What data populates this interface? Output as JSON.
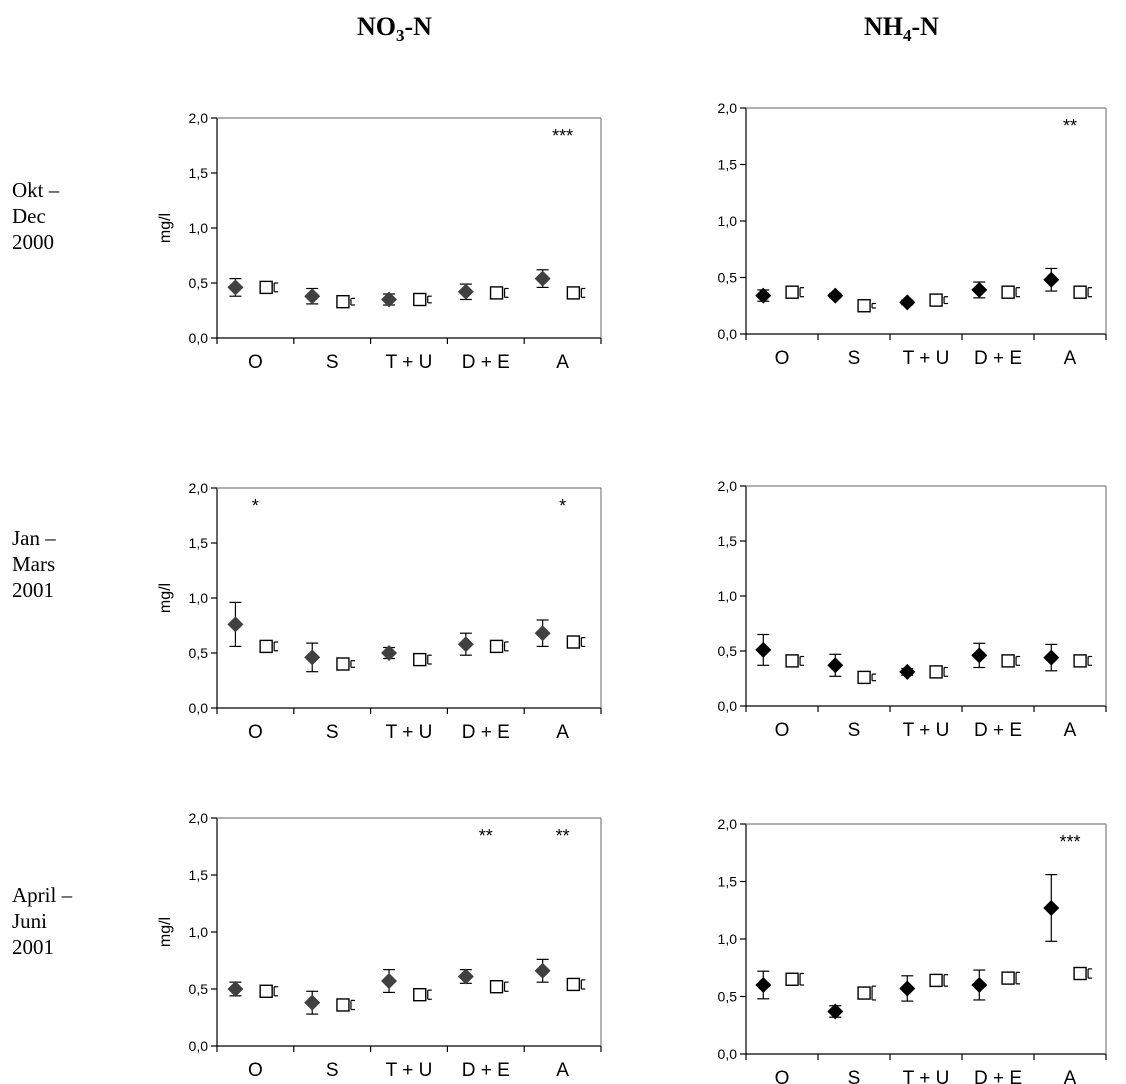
{
  "column_titles": [
    {
      "main": "NO",
      "sub": "3",
      "suffix": "-N"
    },
    {
      "main": "NH",
      "sub": "4",
      "suffix": "-N"
    }
  ],
  "row_labels": [
    [
      "Okt –",
      "Dec",
      "2000"
    ],
    [
      "Jan –",
      "Mars",
      "2001"
    ],
    [
      "April –",
      "Juni",
      "2001"
    ]
  ],
  "chart_data": [
    {
      "type": "scatter",
      "ylabel": "mg/l",
      "ylim": [
        0,
        2
      ],
      "yticks": [
        "0,0",
        "0,5",
        "1,0",
        "1,5",
        "2,0"
      ],
      "categories": [
        "O",
        "S",
        "T + U",
        "D + E",
        "A"
      ],
      "series": [
        {
          "marker": "diamond-filled",
          "color": "#404040",
          "values": [
            0.46,
            0.38,
            0.35,
            0.42,
            0.54
          ],
          "err": [
            0.08,
            0.07,
            0.05,
            0.07,
            0.08
          ]
        },
        {
          "marker": "square-open",
          "color": "#000000",
          "values": [
            0.46,
            0.33,
            0.35,
            0.41,
            0.41
          ],
          "err": [
            0.04,
            0.03,
            0.03,
            0.04,
            0.04
          ]
        }
      ],
      "significance": [
        "",
        "",
        "",
        "",
        "***"
      ]
    },
    {
      "type": "scatter",
      "ylabel": "",
      "ylim": [
        0,
        2
      ],
      "yticks": [
        "0,0",
        "0,5",
        "1,0",
        "1,5",
        "2,0"
      ],
      "categories": [
        "O",
        "S",
        "T + U",
        "D + E",
        "A"
      ],
      "series": [
        {
          "marker": "diamond-filled",
          "color": "#000000",
          "values": [
            0.34,
            0.34,
            0.28,
            0.39,
            0.48
          ],
          "err": [
            0.05,
            0.02,
            0.02,
            0.07,
            0.1
          ]
        },
        {
          "marker": "square-open",
          "color": "#000000",
          "values": [
            0.37,
            0.25,
            0.3,
            0.37,
            0.37
          ],
          "err": [
            0.04,
            0.02,
            0.03,
            0.04,
            0.04
          ]
        }
      ],
      "significance": [
        "",
        "",
        "",
        "",
        "**"
      ]
    },
    {
      "type": "scatter",
      "ylabel": "mg/l",
      "ylim": [
        0,
        2
      ],
      "yticks": [
        "0,0",
        "0,5",
        "1,0",
        "1,5",
        "2,0"
      ],
      "categories": [
        "O",
        "S",
        "T + U",
        "D + E",
        "A"
      ],
      "series": [
        {
          "marker": "diamond-filled",
          "color": "#404040",
          "values": [
            0.76,
            0.46,
            0.5,
            0.58,
            0.68
          ],
          "err": [
            0.2,
            0.13,
            0.05,
            0.1,
            0.12
          ]
        },
        {
          "marker": "square-open",
          "color": "#000000",
          "values": [
            0.56,
            0.4,
            0.44,
            0.56,
            0.6
          ],
          "err": [
            0.04,
            0.03,
            0.04,
            0.04,
            0.04
          ]
        }
      ],
      "significance": [
        "*",
        "",
        "",
        "",
        "*"
      ]
    },
    {
      "type": "scatter",
      "ylabel": "",
      "ylim": [
        0,
        2
      ],
      "yticks": [
        "0,0",
        "0,5",
        "1,0",
        "1,5",
        "2,0"
      ],
      "categories": [
        "O",
        "S",
        "T + U",
        "D + E",
        "A"
      ],
      "series": [
        {
          "marker": "diamond-filled",
          "color": "#000000",
          "values": [
            0.51,
            0.37,
            0.31,
            0.46,
            0.44
          ],
          "err": [
            0.14,
            0.1,
            0.03,
            0.11,
            0.12
          ]
        },
        {
          "marker": "square-open",
          "color": "#000000",
          "values": [
            0.41,
            0.26,
            0.31,
            0.41,
            0.41
          ],
          "err": [
            0.04,
            0.03,
            0.04,
            0.04,
            0.04
          ]
        }
      ],
      "significance": [
        "",
        "",
        "",
        "",
        ""
      ]
    },
    {
      "type": "scatter",
      "ylabel": "mg/l",
      "ylim": [
        0,
        2
      ],
      "yticks": [
        "0,0",
        "0,5",
        "1,0",
        "1,5",
        "2,0"
      ],
      "categories": [
        "O",
        "S",
        "T + U",
        "D + E",
        "A"
      ],
      "series": [
        {
          "marker": "diamond-filled",
          "color": "#404040",
          "values": [
            0.5,
            0.38,
            0.57,
            0.61,
            0.66
          ],
          "err": [
            0.06,
            0.1,
            0.1,
            0.06,
            0.1
          ]
        },
        {
          "marker": "square-open",
          "color": "#000000",
          "values": [
            0.48,
            0.36,
            0.45,
            0.52,
            0.54
          ],
          "err": [
            0.04,
            0.04,
            0.04,
            0.04,
            0.04
          ]
        }
      ],
      "significance": [
        "",
        "",
        "",
        "**",
        "**"
      ]
    },
    {
      "type": "scatter",
      "ylabel": "",
      "ylim": [
        0,
        2
      ],
      "yticks": [
        "0,0",
        "0,5",
        "1,0",
        "1,5",
        "2,0"
      ],
      "categories": [
        "O",
        "S",
        "T + U",
        "D + E",
        "A"
      ],
      "series": [
        {
          "marker": "diamond-filled",
          "color": "#000000",
          "values": [
            0.6,
            0.37,
            0.57,
            0.6,
            1.27
          ],
          "err": [
            0.12,
            0.05,
            0.11,
            0.13,
            0.29
          ]
        },
        {
          "marker": "square-open",
          "color": "#000000",
          "values": [
            0.65,
            0.53,
            0.64,
            0.66,
            0.7
          ],
          "err": [
            0.05,
            0.06,
            0.05,
            0.05,
            0.04
          ]
        }
      ],
      "significance": [
        "",
        "",
        "",
        "",
        "***"
      ]
    }
  ]
}
